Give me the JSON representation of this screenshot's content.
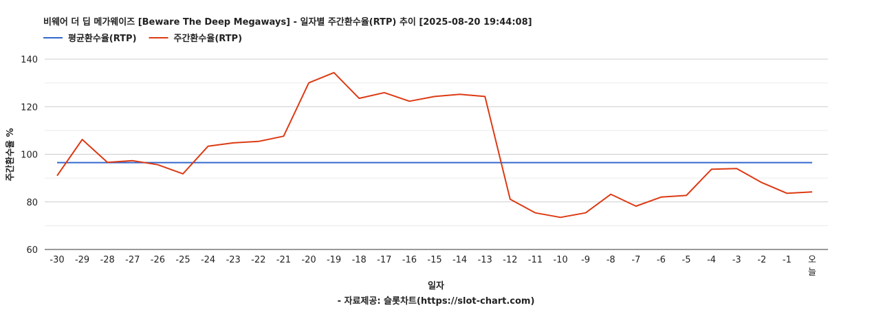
{
  "chart_data": {
    "type": "line",
    "title": "비웨어 더 딥 메가웨이즈 [Beware The Deep Megaways] - 일자별 주간환수율(RTP) 추이 [2025-08-20 19:44:08]",
    "xlabel": "일자",
    "ylabel": "주간환수율 %",
    "source": "- 자료제공: 슬롯차트(https://slot-chart.com)",
    "ylim": [
      60,
      140
    ],
    "yticks": [
      60,
      80,
      100,
      120,
      140
    ],
    "grid": true,
    "legend_position": "top-left",
    "categories": [
      "-30",
      "-29",
      "-28",
      "-27",
      "-26",
      "-25",
      "-24",
      "-23",
      "-22",
      "-21",
      "-20",
      "-19",
      "-18",
      "-17",
      "-16",
      "-15",
      "-14",
      "-13",
      "-12",
      "-11",
      "-10",
      "-9",
      "-8",
      "-7",
      "-6",
      "-5",
      "-4",
      "-3",
      "-2",
      "-1",
      "오늘"
    ],
    "series": [
      {
        "name": "평균환수율(RTP)",
        "color": "#3366cc",
        "values": [
          96.5,
          96.5,
          96.5,
          96.5,
          96.5,
          96.5,
          96.5,
          96.5,
          96.5,
          96.5,
          96.5,
          96.5,
          96.5,
          96.5,
          96.5,
          96.5,
          96.5,
          96.5,
          96.5,
          96.5,
          96.5,
          96.5,
          96.5,
          96.5,
          96.5,
          96.5,
          96.5,
          96.5,
          96.5,
          96.5,
          96.5
        ]
      },
      {
        "name": "주간환수율(RTP)",
        "color": "#dc3912",
        "values": [
          91.0,
          106.2,
          96.6,
          97.3,
          95.6,
          91.8,
          103.4,
          104.8,
          105.4,
          107.6,
          130.0,
          134.3,
          123.5,
          125.9,
          122.3,
          124.3,
          125.2,
          124.3,
          81.1,
          75.4,
          73.5,
          75.4,
          83.2,
          78.2,
          82.0,
          82.7,
          93.7,
          94.0,
          88.1,
          83.6,
          84.2
        ]
      }
    ]
  }
}
